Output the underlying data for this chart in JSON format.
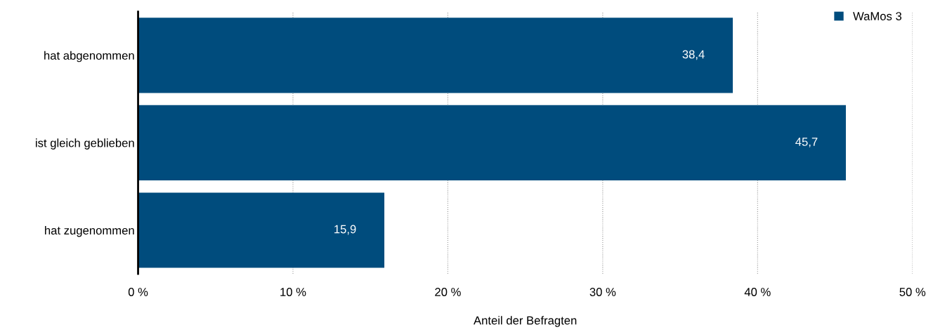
{
  "chart_data": {
    "type": "bar",
    "orientation": "horizontal",
    "xlabel": "Anteil der Befragten",
    "categories": [
      "hat abgenommen",
      "ist gleich geblieben",
      "hat zugenommen"
    ],
    "series": [
      {
        "name": "WaMos 3",
        "color": "#004c7d",
        "values": [
          38.4,
          45.7,
          15.9
        ],
        "value_labels": [
          "38,4",
          "45,7",
          "15,9"
        ]
      }
    ],
    "xlim": [
      0,
      50
    ],
    "xticks": [
      {
        "value": 0,
        "label": "0 %"
      },
      {
        "value": 10,
        "label": "10 %"
      },
      {
        "value": 20,
        "label": "20 %"
      },
      {
        "value": 30,
        "label": "30 %"
      },
      {
        "value": 40,
        "label": "40 %"
      },
      {
        "value": 50,
        "label": "50 %"
      }
    ],
    "grid": "x",
    "legend": "top right"
  }
}
